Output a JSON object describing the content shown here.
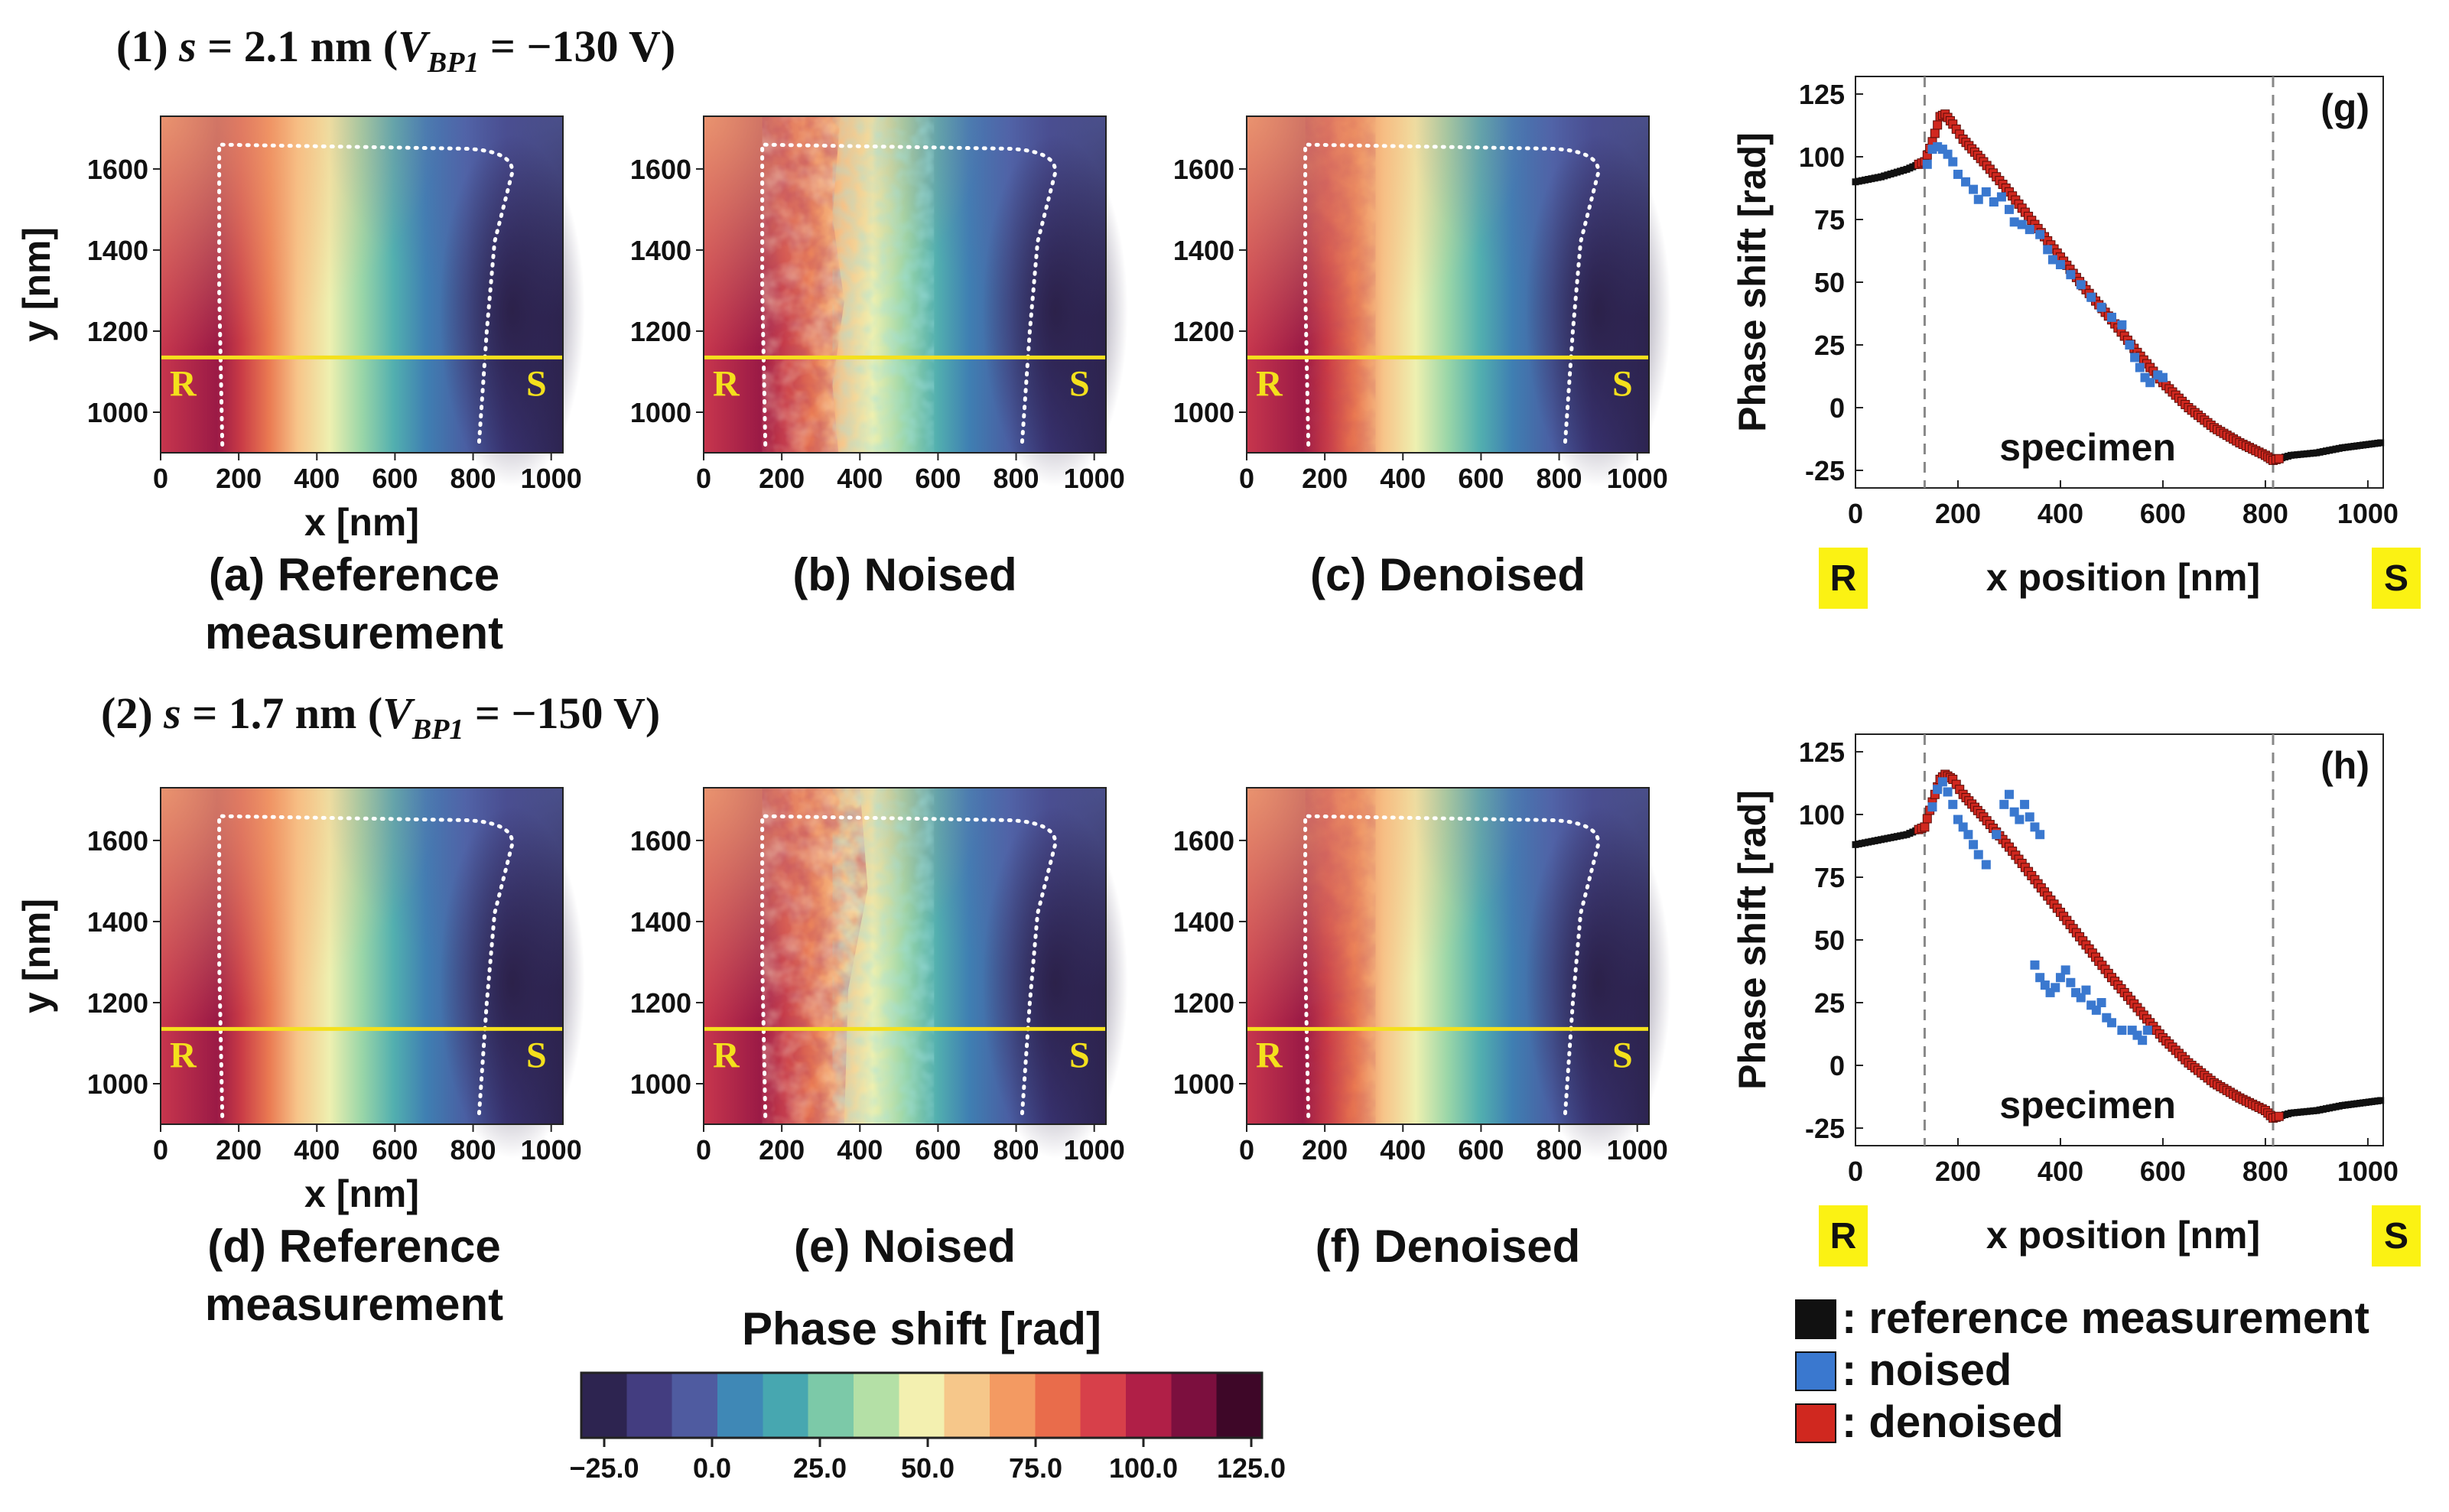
{
  "titles": {
    "row1": {
      "prefix": "(1) ",
      "s_sym": "s",
      "eq": " = 2.1 nm (",
      "v": "V",
      "sub": "BP1",
      "rest": " = −130 V)"
    },
    "row2": {
      "prefix": "(2) ",
      "s_sym": "s",
      "eq": " = 1.7 nm (",
      "v": "V",
      "sub": "BP1",
      "rest": " = −150 V)"
    }
  },
  "maps": {
    "x_ticks": [
      "0",
      "200",
      "400",
      "600",
      "800",
      "1000"
    ],
    "y_ticks": [
      "1000",
      "1200",
      "1400",
      "1600"
    ],
    "xlabel": "x [nm]",
    "ylabel": "y [nm]",
    "line_left": "R",
    "line_right": "S",
    "captions": {
      "a": [
        "(a) Reference",
        "measurement"
      ],
      "b": [
        "(b) Noised"
      ],
      "c": [
        "(c) Denoised"
      ],
      "d": [
        "(d) Reference",
        "measurement"
      ],
      "e": [
        "(e) Noised"
      ],
      "f": [
        "(f) Denoised"
      ]
    }
  },
  "colorbar": {
    "label": "Phase shift [rad]",
    "ticks": [
      "−25.0",
      "0.0",
      "25.0",
      "50.0",
      "75.0",
      "100.0",
      "125.0"
    ],
    "colors": [
      "#2d2450",
      "#433d80",
      "#4f5ba0",
      "#3f88b6",
      "#47a7b0",
      "#7cc9a8",
      "#b4e0a6",
      "#f3f0b0",
      "#f6c78a",
      "#f39a62",
      "#e96c4b",
      "#d7404a",
      "#b01f47",
      "#7c0f3e",
      "#3e0728"
    ]
  },
  "chart_data": [
    {
      "type": "scatter",
      "panel": "(g)",
      "xlabel": "x position [nm]",
      "ylabel": "Phase shift [rad]",
      "xlim": [
        0,
        1030
      ],
      "ylim": [
        -32,
        132
      ],
      "x_ticks": [
        "0",
        "200",
        "400",
        "600",
        "800",
        "1000"
      ],
      "y_ticks": [
        "-25",
        "0",
        "25",
        "50",
        "75",
        "100",
        "125"
      ],
      "annotation": "specimen",
      "vlines": [
        135,
        815
      ],
      "badge_left": "R",
      "badge_right": "S",
      "series": [
        {
          "name": "reference measurement",
          "color": "#111111",
          "points": [
            [
              0,
              90
            ],
            [
              50,
              92
            ],
            [
              100,
              95
            ],
            [
              135,
              98
            ],
            [
              150,
              106
            ],
            [
              165,
              116
            ],
            [
              175,
              117
            ],
            [
              190,
              113
            ],
            [
              210,
              107
            ],
            [
              250,
              98
            ],
            [
              300,
              86
            ],
            [
              350,
              73
            ],
            [
              400,
              60
            ],
            [
              450,
              47
            ],
            [
              500,
              35
            ],
            [
              550,
              22
            ],
            [
              600,
              10
            ],
            [
              650,
              0
            ],
            [
              700,
              -8
            ],
            [
              750,
              -14
            ],
            [
              800,
              -19
            ],
            [
              815,
              -21
            ],
            [
              850,
              -19
            ],
            [
              900,
              -18
            ],
            [
              950,
              -16
            ],
            [
              1025,
              -14
            ]
          ]
        },
        {
          "name": "noised",
          "color": "#3a78cf",
          "points": [
            [
              140,
              97
            ],
            [
              150,
              103
            ],
            [
              160,
              104
            ],
            [
              170,
              103
            ],
            [
              180,
              101
            ],
            [
              190,
              98
            ],
            [
              200,
              93
            ],
            [
              215,
              90
            ],
            [
              230,
              87
            ],
            [
              240,
              83
            ],
            [
              255,
              86
            ],
            [
              270,
              82
            ],
            [
              285,
              84
            ],
            [
              300,
              79
            ],
            [
              310,
              74
            ],
            [
              325,
              73
            ],
            [
              340,
              71
            ],
            [
              360,
              69
            ],
            [
              375,
              63
            ],
            [
              385,
              59
            ],
            [
              400,
              57
            ],
            [
              420,
              53
            ],
            [
              440,
              49
            ],
            [
              460,
              44
            ],
            [
              480,
              40
            ],
            [
              500,
              36
            ],
            [
              520,
              33
            ],
            [
              535,
              25
            ],
            [
              545,
              20
            ],
            [
              555,
              16
            ],
            [
              565,
              12
            ],
            [
              575,
              10
            ],
            [
              590,
              13
            ],
            [
              600,
              12
            ]
          ]
        },
        {
          "name": "denoised",
          "color": "#d0281f",
          "points": [
            [
              0,
              90
            ],
            [
              50,
              92
            ],
            [
              100,
              95
            ],
            [
              135,
              98
            ],
            [
              150,
              106
            ],
            [
              165,
              116
            ],
            [
              175,
              117
            ],
            [
              190,
              113
            ],
            [
              210,
              107
            ],
            [
              250,
              98
            ],
            [
              300,
              86
            ],
            [
              350,
              73
            ],
            [
              400,
              60
            ],
            [
              450,
              47
            ],
            [
              500,
              35
            ],
            [
              550,
              22
            ],
            [
              600,
              10
            ],
            [
              650,
              0
            ],
            [
              700,
              -8
            ],
            [
              750,
              -14
            ],
            [
              800,
              -19
            ],
            [
              815,
              -21
            ],
            [
              850,
              -19
            ],
            [
              900,
              -18
            ],
            [
              950,
              -16
            ],
            [
              1025,
              -14
            ]
          ]
        }
      ]
    },
    {
      "type": "scatter",
      "panel": "(h)",
      "xlabel": "x position [nm]",
      "ylabel": "Phase shift [rad]",
      "xlim": [
        0,
        1030
      ],
      "ylim": [
        -32,
        132
      ],
      "x_ticks": [
        "0",
        "200",
        "400",
        "600",
        "800",
        "1000"
      ],
      "y_ticks": [
        "-25",
        "0",
        "25",
        "50",
        "75",
        "100",
        "125"
      ],
      "annotation": "specimen",
      "vlines": [
        135,
        815
      ],
      "badge_left": "R",
      "badge_right": "S",
      "series": [
        {
          "name": "reference measurement",
          "color": "#111111",
          "points": [
            [
              0,
              88
            ],
            [
              50,
              90
            ],
            [
              100,
              92
            ],
            [
              135,
              95
            ],
            [
              150,
              105
            ],
            [
              165,
              114
            ],
            [
              175,
              116
            ],
            [
              190,
              114
            ],
            [
              210,
              108
            ],
            [
              250,
              99
            ],
            [
              300,
              87
            ],
            [
              350,
              74
            ],
            [
              400,
              61
            ],
            [
              450,
              48
            ],
            [
              500,
              35
            ],
            [
              550,
              23
            ],
            [
              600,
              11
            ],
            [
              650,
              1
            ],
            [
              700,
              -7
            ],
            [
              750,
              -13
            ],
            [
              800,
              -18
            ],
            [
              815,
              -21
            ],
            [
              850,
              -19
            ],
            [
              900,
              -18
            ],
            [
              950,
              -16
            ],
            [
              1025,
              -14
            ]
          ]
        },
        {
          "name": "noised",
          "color": "#3a78cf",
          "points": [
            [
              150,
              103
            ],
            [
              160,
              110
            ],
            [
              170,
              113
            ],
            [
              180,
              109
            ],
            [
              190,
              104
            ],
            [
              200,
              98
            ],
            [
              210,
              95
            ],
            [
              220,
              92
            ],
            [
              230,
              88
            ],
            [
              240,
              84
            ],
            [
              255,
              80
            ],
            [
              275,
              92
            ],
            [
              290,
              104
            ],
            [
              300,
              108
            ],
            [
              310,
              101
            ],
            [
              320,
              98
            ],
            [
              330,
              104
            ],
            [
              340,
              99
            ],
            [
              350,
              95
            ],
            [
              360,
              92
            ],
            [
              350,
              40
            ],
            [
              360,
              35
            ],
            [
              370,
              32
            ],
            [
              380,
              29
            ],
            [
              390,
              31
            ],
            [
              400,
              35
            ],
            [
              410,
              38
            ],
            [
              420,
              33
            ],
            [
              430,
              29
            ],
            [
              440,
              27
            ],
            [
              450,
              30
            ],
            [
              460,
              24
            ],
            [
              470,
              22
            ],
            [
              480,
              25
            ],
            [
              490,
              19
            ],
            [
              500,
              17
            ],
            [
              520,
              14
            ],
            [
              540,
              14
            ],
            [
              550,
              12
            ],
            [
              560,
              10
            ],
            [
              570,
              14
            ]
          ]
        },
        {
          "name": "denoised",
          "color": "#d0281f",
          "points": [
            [
              0,
              88
            ],
            [
              50,
              90
            ],
            [
              100,
              92
            ],
            [
              135,
              95
            ],
            [
              150,
              105
            ],
            [
              165,
              114
            ],
            [
              175,
              116
            ],
            [
              190,
              114
            ],
            [
              210,
              108
            ],
            [
              250,
              99
            ],
            [
              300,
              87
            ],
            [
              350,
              74
            ],
            [
              400,
              61
            ],
            [
              450,
              48
            ],
            [
              500,
              35
            ],
            [
              550,
              23
            ],
            [
              600,
              11
            ],
            [
              650,
              1
            ],
            [
              700,
              -7
            ],
            [
              750,
              -13
            ],
            [
              800,
              -18
            ],
            [
              815,
              -21
            ],
            [
              850,
              -19
            ],
            [
              900,
              -18
            ],
            [
              950,
              -16
            ],
            [
              1025,
              -14
            ]
          ]
        }
      ]
    }
  ],
  "legend": {
    "items": [
      {
        "label": ": reference measurement",
        "color": "#111111"
      },
      {
        "label": ": noised",
        "color": "#3a78cf"
      },
      {
        "label": ": denoised",
        "color": "#d0281f"
      }
    ]
  }
}
